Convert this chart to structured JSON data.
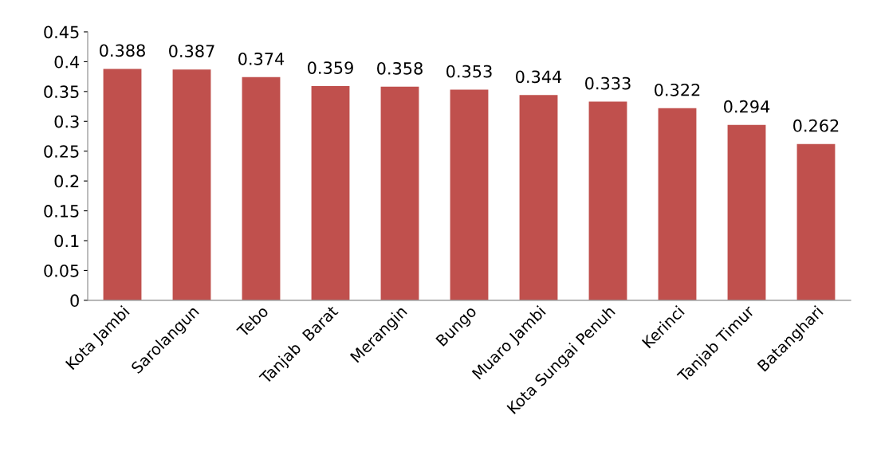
{
  "chart_data": {
    "type": "bar",
    "categories": [
      "Kota Jambi",
      "Sarolangun",
      "Tebo",
      "Tanjab  Barat",
      "Merangin",
      "Bungo",
      "Muaro Jambi",
      "Kota Sungai Penuh",
      "Kerinci",
      "Tanjab Timur",
      "Batanghari"
    ],
    "values": [
      0.388,
      0.387,
      0.374,
      0.359,
      0.358,
      0.353,
      0.344,
      0.333,
      0.322,
      0.294,
      0.262
    ],
    "color": "#c0504d",
    "ylim": [
      0,
      0.45
    ],
    "yticks": [
      0,
      0.05,
      0.1,
      0.15,
      0.2,
      0.25,
      0.3,
      0.35,
      0.4,
      0.45
    ],
    "data_labels": true,
    "grid": false,
    "legend": false
  }
}
